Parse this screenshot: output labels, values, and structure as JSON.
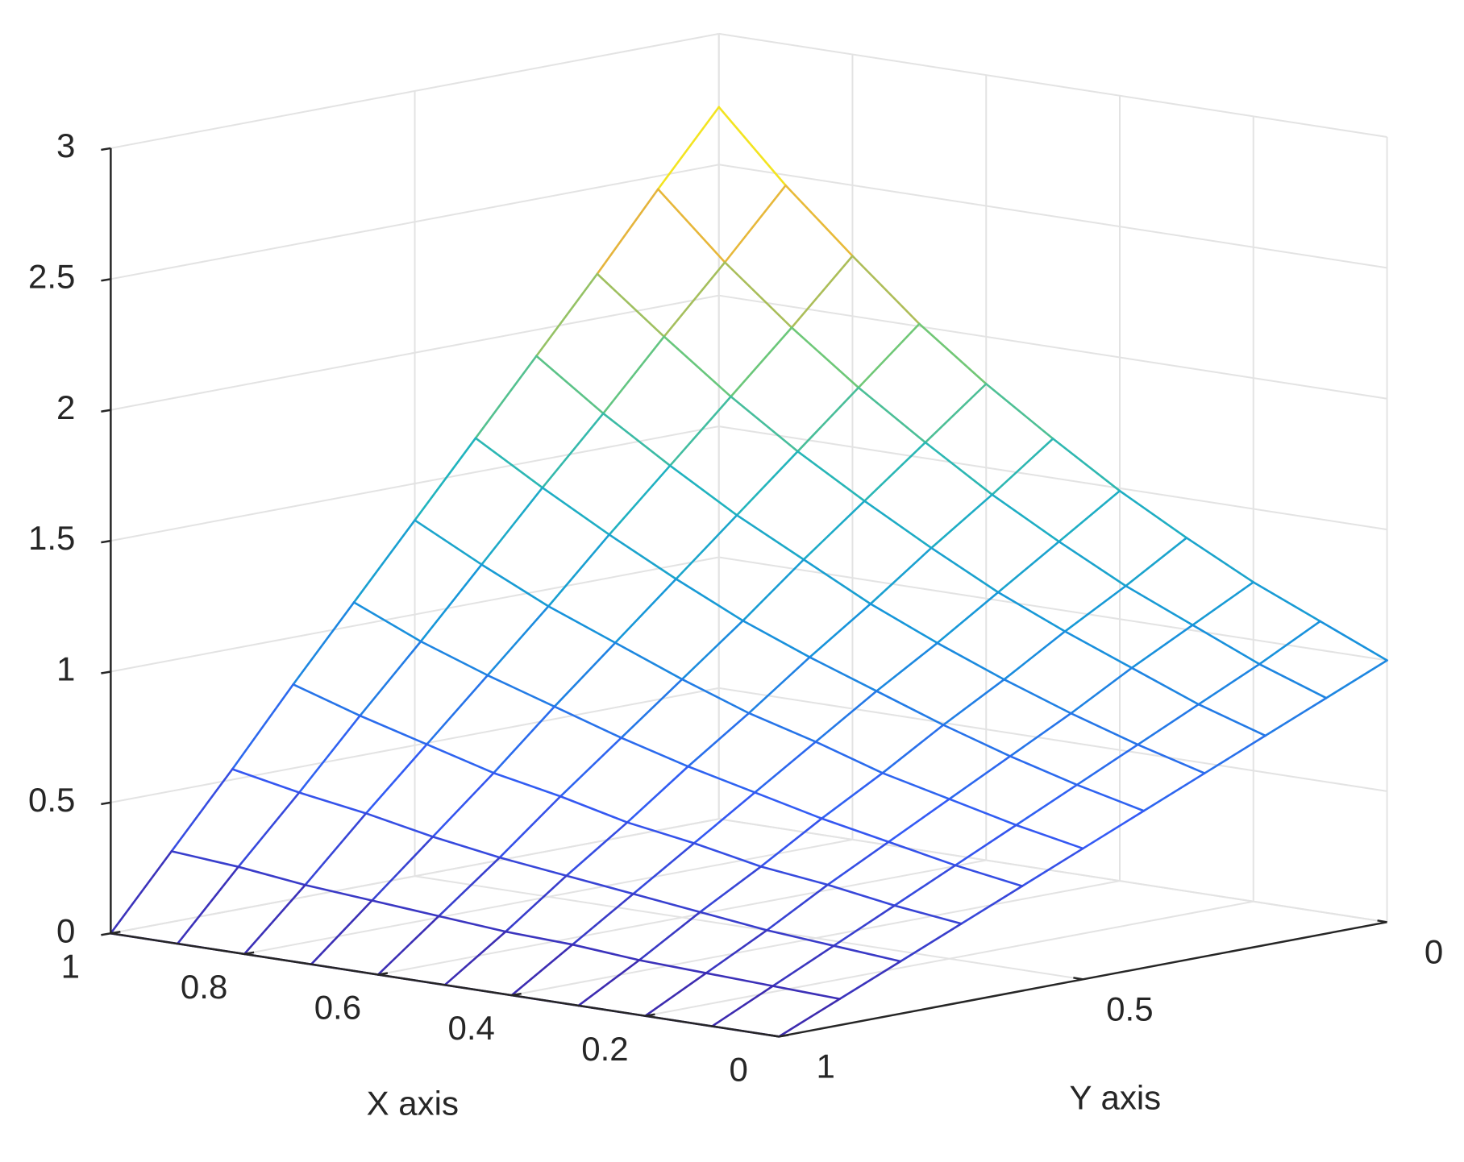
{
  "chart_data": {
    "type": "surface",
    "xlabel": "X axis",
    "ylabel": "Y axis",
    "x": [
      0,
      0.1,
      0.2,
      0.3,
      0.4,
      0.5,
      0.6,
      0.7,
      0.8,
      0.9,
      1
    ],
    "y": [
      0,
      0.1,
      0.2,
      0.3,
      0.4,
      0.5,
      0.6,
      0.7,
      0.8,
      0.9,
      1
    ],
    "z": [
      [
        1,
        1.11,
        1.22,
        1.35,
        1.49,
        1.65,
        1.82,
        2.01,
        2.23,
        2.46,
        2.72
      ],
      [
        0.9,
        0.99,
        1.1,
        1.21,
        1.34,
        1.48,
        1.64,
        1.81,
        2,
        2.21,
        2.45
      ],
      [
        0.8,
        0.88,
        0.98,
        1.08,
        1.19,
        1.32,
        1.46,
        1.61,
        1.78,
        1.97,
        2.17
      ],
      [
        0.7,
        0.77,
        0.85,
        0.94,
        1.04,
        1.15,
        1.28,
        1.41,
        1.56,
        1.72,
        1.9
      ],
      [
        0.6,
        0.66,
        0.73,
        0.81,
        0.9,
        0.99,
        1.09,
        1.21,
        1.34,
        1.48,
        1.63
      ],
      [
        0.5,
        0.55,
        0.61,
        0.67,
        0.75,
        0.82,
        0.91,
        1.01,
        1.11,
        1.23,
        1.36
      ],
      [
        0.4,
        0.44,
        0.49,
        0.54,
        0.6,
        0.66,
        0.73,
        0.81,
        0.89,
        0.98,
        1.09
      ],
      [
        0.3,
        0.33,
        0.37,
        0.4,
        0.45,
        0.49,
        0.55,
        0.6,
        0.67,
        0.74,
        0.82
      ],
      [
        0.2,
        0.22,
        0.24,
        0.27,
        0.3,
        0.33,
        0.36,
        0.4,
        0.45,
        0.49,
        0.54
      ],
      [
        0.1,
        0.11,
        0.12,
        0.13,
        0.15,
        0.16,
        0.18,
        0.2,
        0.22,
        0.25,
        0.27
      ],
      [
        0,
        0,
        0,
        0,
        0,
        0,
        0,
        0,
        0,
        0,
        0
      ]
    ],
    "xlim": [
      0,
      1
    ],
    "ylim": [
      0,
      1
    ],
    "zlim": [
      0,
      3
    ],
    "xticks": [
      0,
      0.2,
      0.4,
      0.6,
      0.8,
      1
    ],
    "yticks": [
      0,
      0.5,
      1
    ],
    "zticks": [
      0,
      0.5,
      1,
      1.5,
      2,
      2.5,
      3
    ],
    "grid": true,
    "colormap": "parula"
  }
}
